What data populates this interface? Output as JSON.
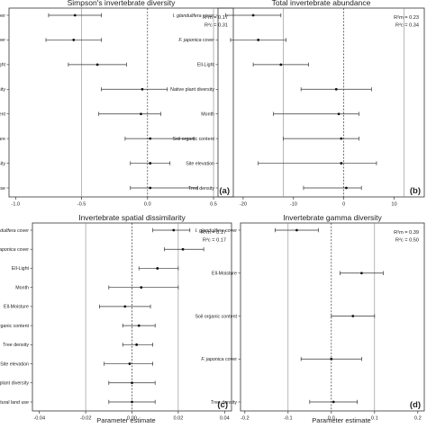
{
  "x_axis_label": "Parameter estimate",
  "chart_data": [
    {
      "type": "forest",
      "title": "Simpson's invertebrate diversity",
      "panel_letter": "(a)",
      "categories": [
        "I. glandulifera cover",
        "F. japonica cover",
        "Ell-Light",
        "Native plant diversity",
        "Soil organic content",
        "Ell-Moisture",
        "Tree density",
        "Natural land use"
      ],
      "italic_prefix": [
        "I. glandulifera",
        "F. japonica",
        "",
        "",
        "",
        "",
        "",
        ""
      ],
      "estimates": [
        -0.55,
        -0.56,
        -0.38,
        -0.04,
        -0.05,
        0.02,
        0.02,
        0.02
      ],
      "ci_lower": [
        -0.75,
        -0.77,
        -0.6,
        -0.35,
        -0.37,
        -0.17,
        -0.13,
        -0.13
      ],
      "ci_upper": [
        -0.35,
        -0.35,
        -0.16,
        0.15,
        0.1,
        0.35,
        0.17,
        0.38
      ],
      "xlim": [
        -1.05,
        0.65
      ],
      "xticks": [
        -1.0,
        -0.5,
        0.0,
        0.5
      ],
      "xtick_labels": [
        "-1.0",
        "-0.5",
        "0.0",
        "0.5"
      ],
      "reference_lines": [
        -0.5,
        0.5
      ],
      "zero_line": 0.0,
      "stats": [
        "R²m = 0.17",
        "R²c = 0.31"
      ]
    },
    {
      "type": "forest",
      "title": "Total invertebrate abundance",
      "panel_letter": "(b)",
      "categories": [
        "I. glandulifera cover",
        "F. japonica cover",
        "Ell-Light",
        "Native plant diversity",
        "Month",
        "Soil organic content",
        "Site elevation",
        "Tree density"
      ],
      "italic_prefix": [
        "I. glandulifera",
        "F. japonica",
        "",
        "",
        "",
        "",
        "",
        ""
      ],
      "estimates": [
        -18.0,
        -17.0,
        -12.5,
        -1.5,
        -1.0,
        -0.5,
        -0.5,
        0.5
      ],
      "ci_lower": [
        -23.5,
        -22.5,
        -18.0,
        -8.5,
        -14.0,
        -12.0,
        -17.0,
        -8.0
      ],
      "ci_upper": [
        -12.5,
        -11.5,
        -7.0,
        5.5,
        3.0,
        3.0,
        6.5,
        3.5
      ],
      "xlim": [
        -25,
        16
      ],
      "xticks": [
        -20,
        -10,
        0,
        10
      ],
      "xtick_labels": [
        "-20",
        "-10",
        "0",
        "10"
      ],
      "reference_lines": [
        -12,
        12
      ],
      "zero_line": 0,
      "stats": [
        "R²m = 0.23",
        "R²c = 0.34"
      ]
    },
    {
      "type": "forest",
      "title": "Invertebrate spatial dissimilarity",
      "panel_letter": "(c)",
      "categories": [
        "I. glandulifera cover",
        "F. japonica cover",
        "Ell-Light",
        "Month",
        "Ell-Moisture",
        "Soil organic content",
        "Tree density",
        "Site elevation",
        "Native plant diversity",
        "Natural land use"
      ],
      "italic_prefix": [
        "I. glandulifera",
        "F. japonica",
        "",
        "",
        "",
        "",
        "",
        "",
        "",
        ""
      ],
      "estimates": [
        0.018,
        0.022,
        0.011,
        0.004,
        -0.003,
        0.003,
        0.002,
        -0.001,
        0.0,
        0.0
      ],
      "ci_lower": [
        0.009,
        0.014,
        0.003,
        -0.01,
        -0.014,
        -0.004,
        -0.004,
        -0.012,
        -0.01,
        -0.01
      ],
      "ci_upper": [
        0.025,
        0.031,
        0.02,
        0.02,
        0.008,
        0.01,
        0.009,
        0.009,
        0.01,
        0.01
      ],
      "xlim": [
        -0.043,
        0.043
      ],
      "xticks": [
        -0.04,
        -0.02,
        0.0,
        0.02,
        0.04
      ],
      "xtick_labels": [
        "-0.04",
        "-0.02",
        "0.00",
        "0.02",
        "0.04"
      ],
      "reference_lines": [
        -0.02,
        0.02
      ],
      "zero_line": 0.0,
      "stats": [
        "R²m = 0.17",
        "R²c = 0.17"
      ]
    },
    {
      "type": "forest",
      "title": "Invertebrate gamma diversity",
      "panel_letter": "(d)",
      "categories": [
        "I. glandulifera cover",
        "Ell-Moisture",
        "Soil organic content",
        "F. japonica cover",
        "Tree density"
      ],
      "italic_prefix": [
        "I. glandulifera",
        "",
        "",
        "F. japonica",
        ""
      ],
      "estimates": [
        -0.08,
        0.07,
        0.05,
        0.0,
        0.005
      ],
      "ci_lower": [
        -0.13,
        0.02,
        0.0,
        -0.07,
        -0.05
      ],
      "ci_upper": [
        -0.03,
        0.12,
        0.1,
        0.07,
        0.06
      ],
      "xlim": [
        -0.21,
        0.215
      ],
      "xticks": [
        -0.2,
        -0.1,
        0.0,
        0.1,
        0.2
      ],
      "xtick_labels": [
        "-0.2",
        "-0.1",
        "0.0",
        "0.1",
        "0.2"
      ],
      "reference_lines": [
        -0.1,
        0.1
      ],
      "zero_line": 0.0,
      "stats": [
        "R²m = 0.39",
        "R²c = 0.50"
      ]
    }
  ]
}
